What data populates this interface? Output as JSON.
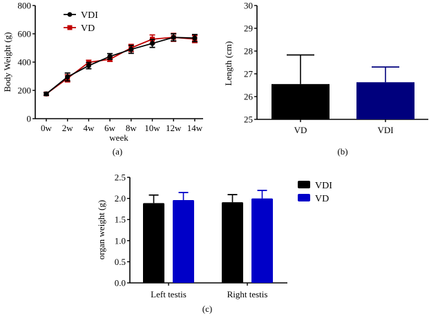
{
  "chart_data": [
    {
      "id": "a",
      "type": "line",
      "title": "",
      "caption": "(a)",
      "xlabel": "week",
      "ylabel": "Body Weight (g)",
      "categories": [
        "0w",
        "2w",
        "4w",
        "6w",
        "8w",
        "10w",
        "12w",
        "14w"
      ],
      "ylim": [
        0,
        800
      ],
      "yticks": [
        0,
        200,
        400,
        600,
        800
      ],
      "grid": false,
      "legend": "top-left",
      "series": [
        {
          "name": "VDI",
          "color": "#000000",
          "marker": "circle",
          "values": [
            175,
            295,
            375,
            440,
            490,
            532,
            575,
            570
          ],
          "errors": [
            10,
            28,
            22,
            20,
            28,
            28,
            25,
            25
          ]
        },
        {
          "name": "VD",
          "color": "#c00000",
          "marker": "square",
          "values": [
            175,
            285,
            398,
            420,
            500,
            562,
            575,
            563
          ],
          "errors": [
            8,
            25,
            15,
            15,
            25,
            30,
            28,
            25
          ]
        }
      ]
    },
    {
      "id": "b",
      "type": "bar",
      "title": "",
      "caption": "(b)",
      "xlabel": "",
      "ylabel": "Length (cm)",
      "categories": [
        "VD",
        "VDI"
      ],
      "values": [
        26.55,
        26.63
      ],
      "errors_upper": [
        27.83,
        27.3
      ],
      "colors": [
        "#000000",
        "#00007d"
      ],
      "ylim": [
        25,
        30
      ],
      "yticks": [
        25,
        26,
        27,
        28,
        29,
        30
      ],
      "grid": false
    },
    {
      "id": "c",
      "type": "bar",
      "title": "",
      "caption": "(c)",
      "xlabel": "",
      "ylabel": "organ weight (g)",
      "categories": [
        "Left testis",
        "Right testis"
      ],
      "ylim": [
        0,
        2.5
      ],
      "yticks": [
        "0.0",
        "0.5",
        "1.0",
        "1.5",
        "2.0",
        "2.5"
      ],
      "grid": false,
      "legend": "right",
      "series": [
        {
          "name": "VDI",
          "color": "#000000",
          "values": [
            1.89,
            1.91
          ],
          "errors_upper": [
            2.08,
            2.09
          ]
        },
        {
          "name": "VD",
          "color": "#0000c8",
          "values": [
            1.96,
            2.0
          ],
          "errors_upper": [
            2.14,
            2.19
          ]
        }
      ]
    }
  ]
}
